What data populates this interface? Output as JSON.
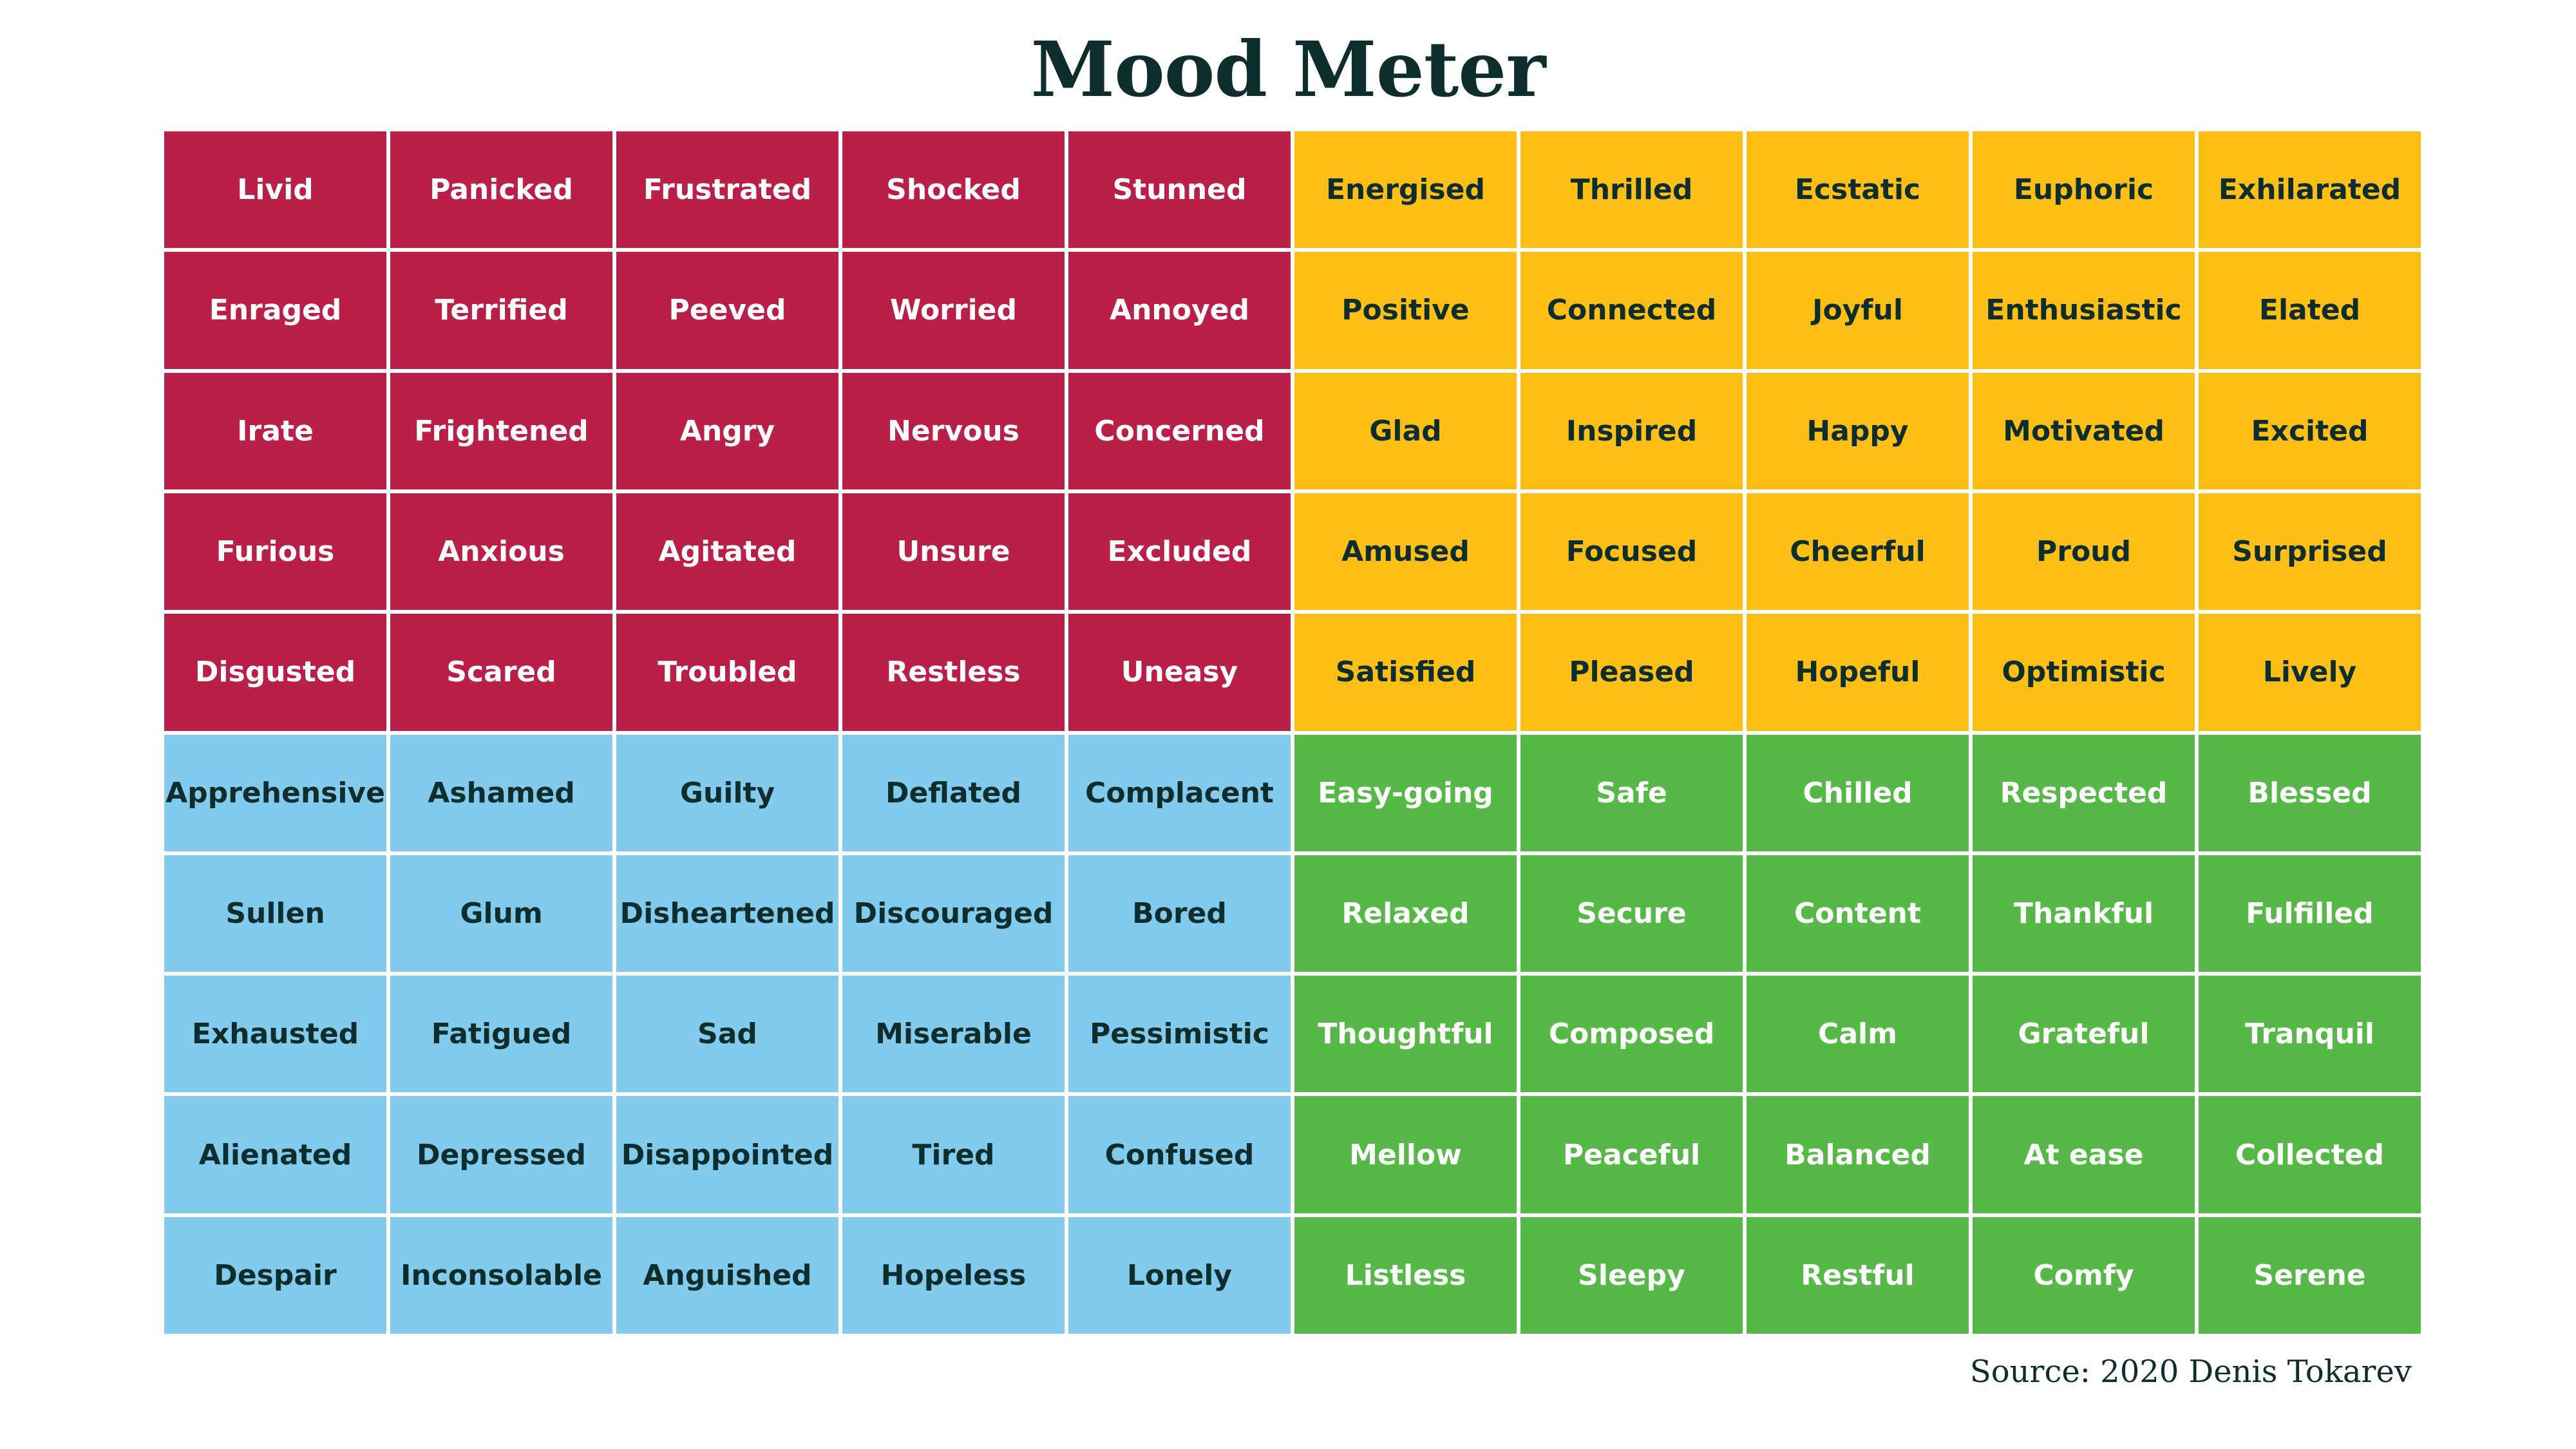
{
  "title": "Mood Meter",
  "source": "Source: 2020 Denis Tokarev",
  "colors": {
    "red": "#b91f47",
    "yellow": "#fdbf16",
    "blue": "#82cbed",
    "green": "#56b847",
    "dark_text": "#0d2e2c"
  },
  "grid": [
    [
      "Livid",
      "Panicked",
      "Frustrated",
      "Shocked",
      "Stunned",
      "Energised",
      "Thrilled",
      "Ecstatic",
      "Euphoric",
      "Exhilarated"
    ],
    [
      "Enraged",
      "Terrified",
      "Peeved",
      "Worried",
      "Annoyed",
      "Positive",
      "Connected",
      "Joyful",
      "Enthusiastic",
      "Elated"
    ],
    [
      "Irate",
      "Frightened",
      "Angry",
      "Nervous",
      "Concerned",
      "Glad",
      "Inspired",
      "Happy",
      "Motivated",
      "Excited"
    ],
    [
      "Furious",
      "Anxious",
      "Agitated",
      "Unsure",
      "Excluded",
      "Amused",
      "Focused",
      "Cheerful",
      "Proud",
      "Surprised"
    ],
    [
      "Disgusted",
      "Scared",
      "Troubled",
      "Restless",
      "Uneasy",
      "Satisfied",
      "Pleased",
      "Hopeful",
      "Optimistic",
      "Lively"
    ],
    [
      "Apprehensive",
      "Ashamed",
      "Guilty",
      "Deflated",
      "Complacent",
      "Easy-going",
      "Safe",
      "Chilled",
      "Respected",
      "Blessed"
    ],
    [
      "Sullen",
      "Glum",
      "Disheartened",
      "Discouraged",
      "Bored",
      "Relaxed",
      "Secure",
      "Content",
      "Thankful",
      "Fulfilled"
    ],
    [
      "Exhausted",
      "Fatigued",
      "Sad",
      "Miserable",
      "Pessimistic",
      "Thoughtful",
      "Composed",
      "Calm",
      "Grateful",
      "Tranquil"
    ],
    [
      "Alienated",
      "Depressed",
      "Disappointed",
      "Tired",
      "Confused",
      "Mellow",
      "Peaceful",
      "Balanced",
      "At ease",
      "Collected"
    ],
    [
      "Despair",
      "Inconsolable",
      "Anguished",
      "Hopeless",
      "Lonely",
      "Listless",
      "Sleepy",
      "Restful",
      "Comfy",
      "Serene"
    ]
  ]
}
